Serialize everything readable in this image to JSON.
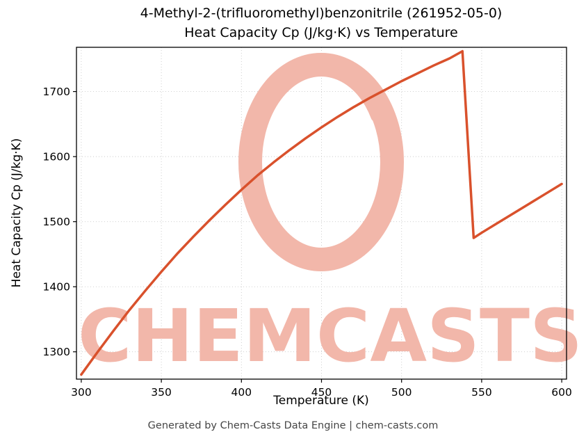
{
  "footer": {
    "text": "Generated by Chem-Casts Data Engine | chem-casts.com"
  },
  "watermark": {
    "text": "CHEMCASTS",
    "color": "#f2b7aa",
    "logo": "brush-circle"
  },
  "chart_data": {
    "type": "line",
    "title_line1": "4-Methyl-2-(trifluoromethyl)benzonitrile (261952-05-0)",
    "title_line2": "Heat Capacity Cp (J/kg·K) vs Temperature",
    "xlabel": "Temperature (K)",
    "ylabel": "Heat Capacity Cp (J/kg·K)",
    "xlim": [
      297,
      603
    ],
    "ylim": [
      1258,
      1768
    ],
    "xticks": [
      300,
      350,
      400,
      450,
      500,
      550,
      600
    ],
    "yticks": [
      1300,
      1400,
      1500,
      1600,
      1700
    ],
    "grid": true,
    "grid_color": "#c9c9c9",
    "line_color": "#d9512c",
    "line_width": 3.5,
    "spine_color": "#000000",
    "legend": "none",
    "series": [
      {
        "name": "Heat Capacity Cp",
        "points": [
          [
            300,
            1265
          ],
          [
            310,
            1299
          ],
          [
            320,
            1332
          ],
          [
            330,
            1364
          ],
          [
            340,
            1394
          ],
          [
            350,
            1423
          ],
          [
            360,
            1451
          ],
          [
            370,
            1477
          ],
          [
            380,
            1502
          ],
          [
            390,
            1526
          ],
          [
            400,
            1549
          ],
          [
            410,
            1571
          ],
          [
            420,
            1591
          ],
          [
            430,
            1610
          ],
          [
            440,
            1628
          ],
          [
            450,
            1645
          ],
          [
            460,
            1661
          ],
          [
            470,
            1676
          ],
          [
            480,
            1690
          ],
          [
            490,
            1703
          ],
          [
            500,
            1716
          ],
          [
            510,
            1728
          ],
          [
            520,
            1740
          ],
          [
            530,
            1751
          ],
          [
            538,
            1762
          ],
          [
            545,
            1475
          ],
          [
            550,
            1483
          ],
          [
            560,
            1498
          ],
          [
            570,
            1513
          ],
          [
            580,
            1528
          ],
          [
            590,
            1543
          ],
          [
            600,
            1558
          ]
        ]
      }
    ]
  }
}
